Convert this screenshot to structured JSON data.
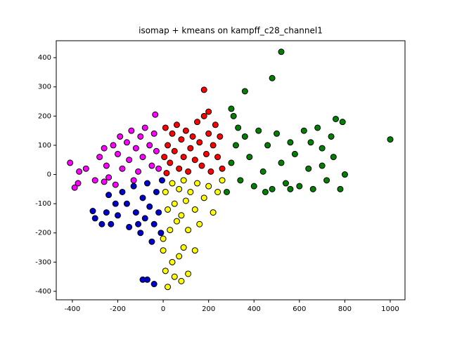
{
  "chart_data": {
    "type": "scatter",
    "title": "isomap + kmeans on kampff_c28_channel1",
    "xlim": [
      -471,
      1065
    ],
    "ylim": [
      -429,
      458
    ],
    "xticks": [
      -400,
      -200,
      0,
      200,
      400,
      600,
      800,
      1000
    ],
    "yticks": [
      -400,
      -300,
      -200,
      -100,
      0,
      100,
      200,
      300,
      400
    ],
    "grid": false,
    "edgecolor": "#000000",
    "series": [
      {
        "color": "#ff00ff",
        "x": [
          -410,
          -390,
          -375,
          -370,
          -340,
          -300,
          -280,
          -260,
          -250,
          -240,
          -220,
          -200,
          -190,
          -180,
          -160,
          -150,
          -140,
          -120,
          -110,
          -100,
          -90,
          -80,
          -60,
          -50,
          -40,
          -30,
          -20,
          -35,
          -260,
          -210,
          -130
        ],
        "y": [
          40,
          -45,
          -30,
          10,
          20,
          -20,
          60,
          90,
          30,
          -10,
          100,
          70,
          130,
          20,
          110,
          50,
          150,
          90,
          10,
          130,
          60,
          160,
          100,
          30,
          140,
          80,
          20,
          205,
          -25,
          -35,
          -20
        ]
      },
      {
        "color": "#ff0000",
        "x": [
          10,
          20,
          30,
          40,
          50,
          60,
          70,
          80,
          90,
          100,
          110,
          120,
          130,
          140,
          150,
          160,
          170,
          180,
          190,
          200,
          210,
          220,
          240,
          250,
          260,
          180,
          200,
          230,
          5,
          15
        ],
        "y": [
          160,
          100,
          40,
          140,
          80,
          170,
          20,
          120,
          60,
          150,
          10,
          90,
          130,
          50,
          180,
          110,
          30,
          200,
          70,
          140,
          10,
          100,
          60,
          130,
          20,
          290,
          215,
          170,
          60,
          5
        ]
      },
      {
        "color": "#ffff00",
        "x": [
          10,
          20,
          30,
          40,
          50,
          60,
          70,
          80,
          90,
          100,
          110,
          120,
          140,
          150,
          160,
          180,
          200,
          220,
          240,
          260,
          0,
          10,
          20,
          40,
          50,
          70,
          90,
          110,
          140,
          80,
          0
        ],
        "y": [
          -60,
          -120,
          -190,
          -30,
          -100,
          -160,
          -50,
          -140,
          -20,
          -90,
          -190,
          -60,
          -120,
          -30,
          -170,
          -80,
          -40,
          -130,
          -60,
          -20,
          -260,
          -330,
          -385,
          -300,
          -350,
          -280,
          -250,
          -340,
          -260,
          -365,
          -220
        ]
      },
      {
        "color": "#0000cd",
        "x": [
          -310,
          -300,
          -270,
          -250,
          -230,
          -90,
          -70,
          -40,
          -200,
          -180,
          -160,
          -150,
          -130,
          -120,
          -100,
          -90,
          -80,
          -70,
          -60,
          -50,
          -40,
          -30,
          -20,
          -10,
          -5,
          -110,
          -210,
          -240
        ],
        "y": [
          -125,
          -150,
          -170,
          -130,
          -170,
          -360,
          -360,
          -375,
          -140,
          -60,
          -100,
          -180,
          -40,
          -130,
          -200,
          -80,
          -150,
          -30,
          -110,
          -230,
          -170,
          -60,
          -130,
          -200,
          -20,
          -170,
          -100,
          -70
        ]
      },
      {
        "color": "#008000",
        "x": [
          520,
          480,
          360,
          1000,
          300,
          310,
          330,
          280,
          300,
          320,
          340,
          360,
          380,
          400,
          420,
          440,
          460,
          480,
          500,
          520,
          540,
          560,
          580,
          600,
          620,
          640,
          660,
          680,
          700,
          720,
          740,
          760,
          780,
          790,
          800,
          750,
          700,
          650,
          560,
          450
        ],
        "y": [
          420,
          330,
          285,
          120,
          225,
          200,
          160,
          -60,
          40,
          100,
          -20,
          130,
          60,
          -40,
          150,
          10,
          100,
          -50,
          140,
          40,
          -30,
          110,
          70,
          -40,
          150,
          20,
          -50,
          160,
          90,
          -20,
          130,
          190,
          -50,
          180,
          0,
          60,
          30,
          110,
          -50,
          -60
        ]
      }
    ]
  }
}
